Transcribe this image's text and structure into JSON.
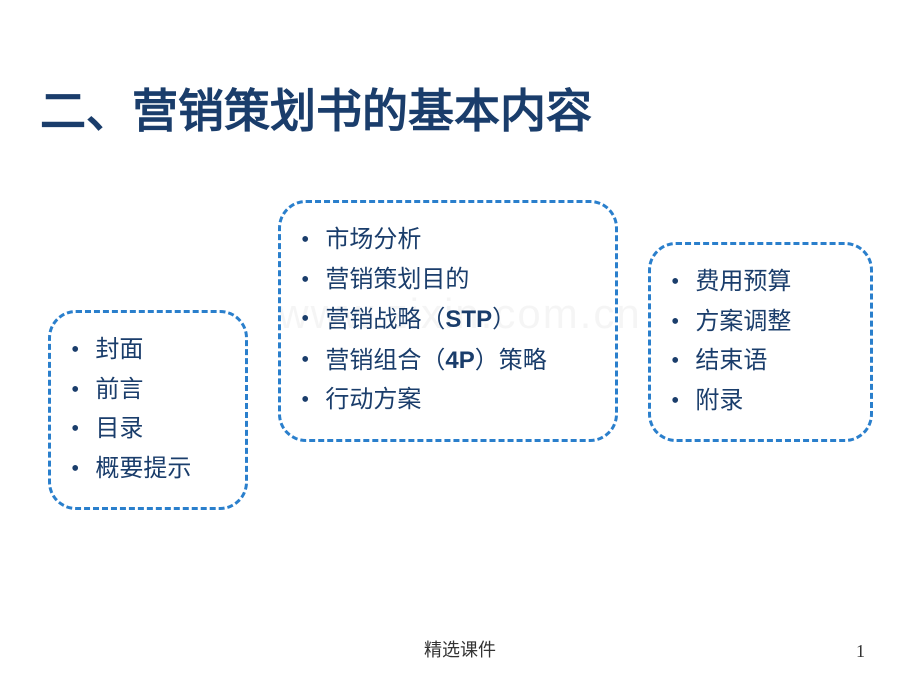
{
  "title": "二、营销策划书的基本内容",
  "watermark": "www.zixin.com.cn",
  "box1": {
    "items": [
      "封面",
      "前言",
      "目录",
      "概要提示"
    ]
  },
  "box2": {
    "items": [
      "市场分析",
      "营销策划目的",
      "营销战略（STP）",
      "营销组合（4P）策略",
      "行动方案"
    ]
  },
  "box3": {
    "items": [
      "费用预算",
      "方案调整",
      "结束语",
      "附录"
    ]
  },
  "footer": "精选课件",
  "page_number": "1",
  "colors": {
    "text_color": "#1a3d6b",
    "border_color": "#2a7fcc",
    "background": "#ffffff"
  },
  "styling": {
    "title_fontsize": 46,
    "item_fontsize": 24,
    "border_width": 3,
    "border_radius": 28,
    "border_style": "dashed"
  }
}
